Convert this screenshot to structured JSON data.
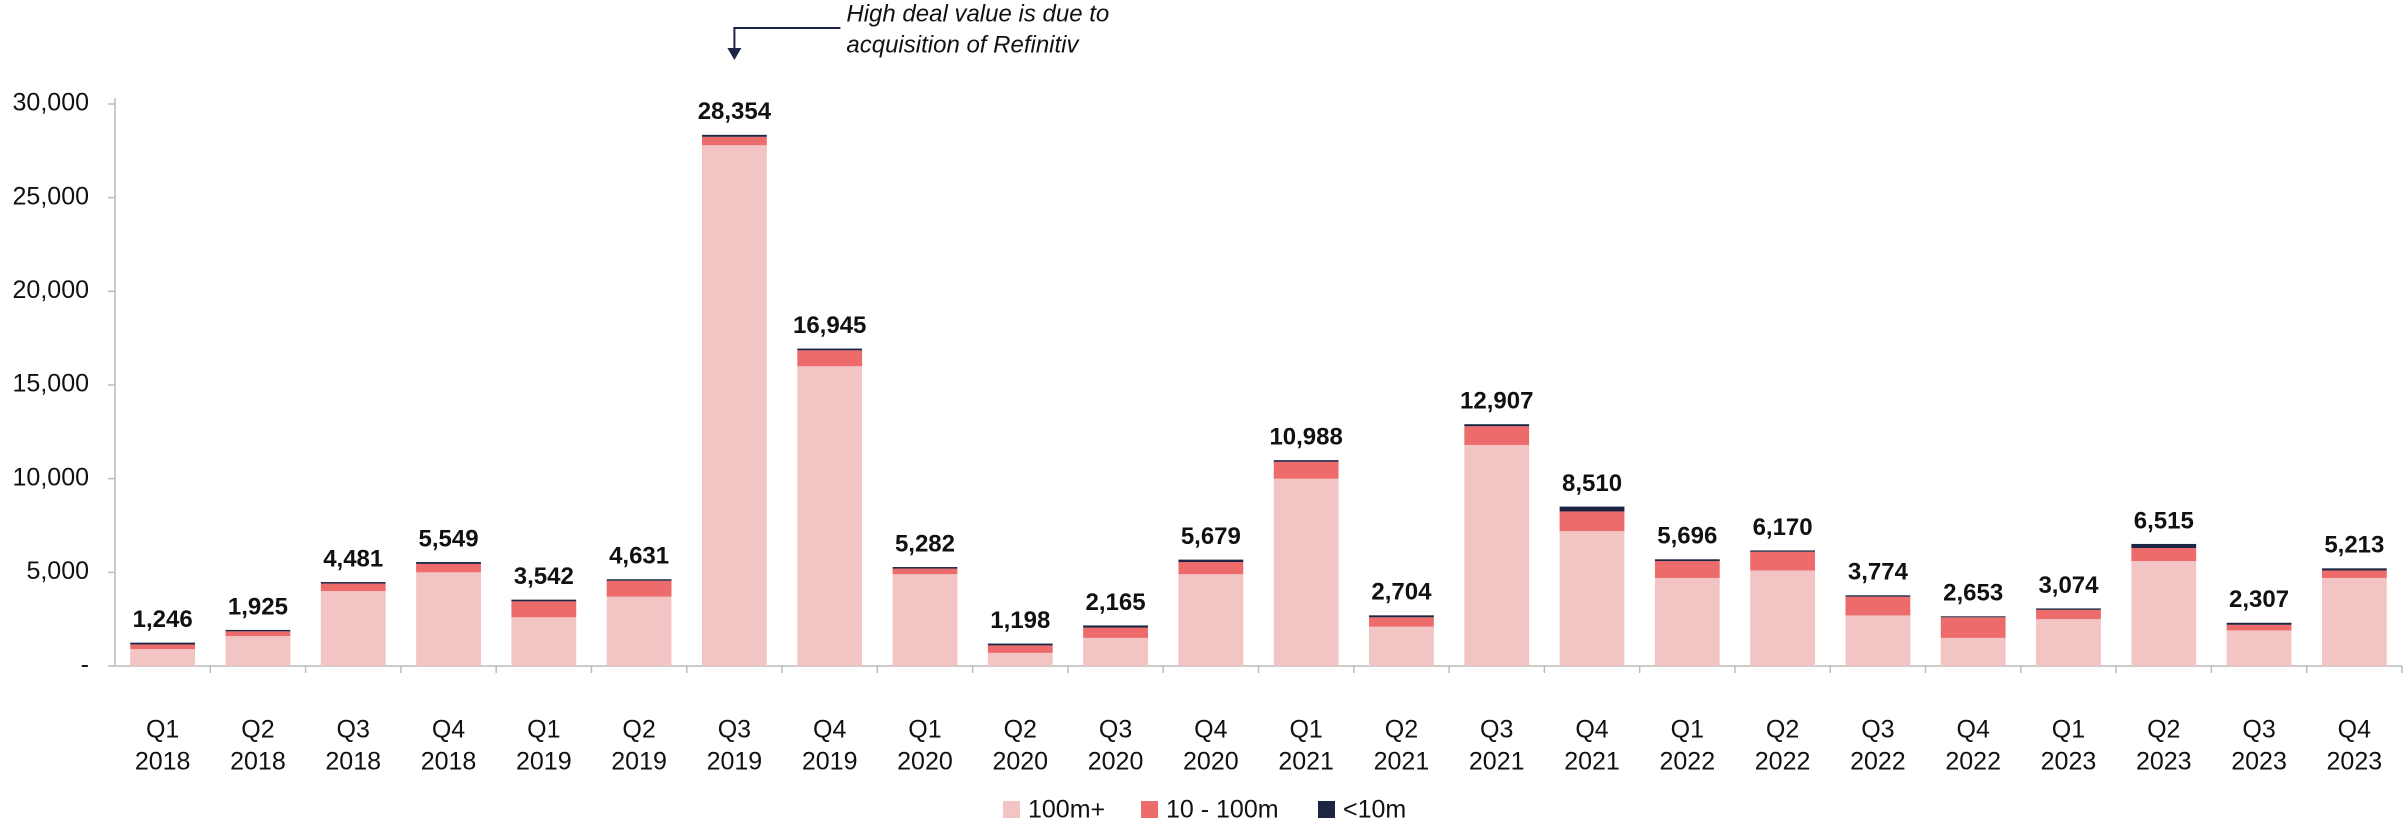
{
  "chart_data": {
    "type": "stacked_bar",
    "annotation": [
      "High deal value is due to",
      "acquisition of Refinitiv"
    ],
    "annotation_category": 6,
    "categories": [
      [
        "Q1",
        "2018"
      ],
      [
        "Q2",
        "2018"
      ],
      [
        "Q3",
        "2018"
      ],
      [
        "Q4",
        "2018"
      ],
      [
        "Q1",
        "2019"
      ],
      [
        "Q2",
        "2019"
      ],
      [
        "Q3",
        "2019"
      ],
      [
        "Q4",
        "2019"
      ],
      [
        "Q1",
        "2020"
      ],
      [
        "Q2",
        "2020"
      ],
      [
        "Q3",
        "2020"
      ],
      [
        "Q4",
        "2020"
      ],
      [
        "Q1",
        "2021"
      ],
      [
        "Q2",
        "2021"
      ],
      [
        "Q3",
        "2021"
      ],
      [
        "Q4",
        "2021"
      ],
      [
        "Q1",
        "2022"
      ],
      [
        "Q2",
        "2022"
      ],
      [
        "Q3",
        "2022"
      ],
      [
        "Q4",
        "2022"
      ],
      [
        "Q1",
        "2023"
      ],
      [
        "Q2",
        "2023"
      ],
      [
        "Q3",
        "2023"
      ],
      [
        "Q4",
        "2023"
      ]
    ],
    "series": [
      {
        "name": "100m+",
        "color": "#f2c4c4",
        "values": [
          900,
          1600,
          4000,
          5000,
          2600,
          3700,
          27800,
          16000,
          4900,
          700,
          1500,
          4900,
          10000,
          2100,
          11800,
          7200,
          4700,
          5100,
          2700,
          1500,
          2500,
          5600,
          1900,
          4700
        ]
      },
      {
        "name": "10 - 100m",
        "color": "#ee6b6b",
        "values": [
          250,
          250,
          400,
          450,
          850,
          850,
          450,
          850,
          300,
          400,
          550,
          650,
          900,
          500,
          1000,
          1050,
          900,
          1000,
          1000,
          1100,
          500,
          700,
          300,
          400
        ]
      },
      {
        "name": "<10m",
        "color": "#1c2541",
        "values": [
          96,
          75,
          81,
          99,
          92,
          81,
          104,
          95,
          82,
          98,
          115,
          129,
          88,
          104,
          107,
          260,
          96,
          70,
          74,
          53,
          74,
          215,
          107,
          113
        ]
      }
    ],
    "totals": [
      1246,
      1925,
      4481,
      5549,
      3542,
      4631,
      28354,
      16945,
      5282,
      1198,
      2165,
      5679,
      10988,
      2704,
      12907,
      8510,
      5696,
      6170,
      3774,
      2653,
      3074,
      6515,
      2307,
      5213
    ],
    "total_labels": [
      "1,246",
      "1,925",
      "4,481",
      "5,549",
      "3,542",
      "4,631",
      "28,354",
      "16,945",
      "5,282",
      "1,198",
      "2,165",
      "5,679",
      "10,988",
      "2,704",
      "12,907",
      "8,510",
      "5,696",
      "6,170",
      "3,774",
      "2,653",
      "3,074",
      "6,515",
      "2,307",
      "5,213"
    ],
    "ylim": [
      0,
      30000
    ],
    "yticks": [
      {
        "value": 0,
        "label": "-"
      },
      {
        "value": 5000,
        "label": "5,000"
      },
      {
        "value": 10000,
        "label": "10,000"
      },
      {
        "value": 15000,
        "label": "15,000"
      },
      {
        "value": 20000,
        "label": "20,000"
      },
      {
        "value": 25000,
        "label": "25,000"
      },
      {
        "value": 30000,
        "label": "30,000"
      }
    ],
    "legend": "bottom",
    "grid": false
  }
}
